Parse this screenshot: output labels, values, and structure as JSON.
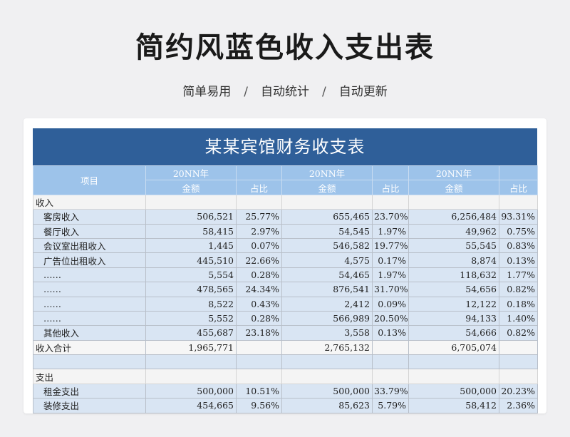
{
  "title": "简约风蓝色收入支出表",
  "tags": [
    "简单易用",
    "自动统计",
    "自动更新"
  ],
  "separator": "/",
  "sheet": {
    "title": "某某宾馆财务收支表",
    "header": {
      "item": "项目",
      "periods": [
        "20NN年",
        "20NN年",
        "20NN年"
      ],
      "amount": "金额",
      "ratio": "占比"
    },
    "income_section": "收入",
    "income_rows": [
      {
        "label": "客房收入",
        "v": [
          "506,521",
          "25.77%",
          "655,465",
          "23.70%",
          "6,256,484",
          "93.31%"
        ]
      },
      {
        "label": "餐厅收入",
        "v": [
          "58,415",
          "2.97%",
          "54,545",
          "1.97%",
          "49,962",
          "0.75%"
        ]
      },
      {
        "label": "会议室出租收入",
        "v": [
          "1,445",
          "0.07%",
          "546,582",
          "19.77%",
          "55,545",
          "0.83%"
        ]
      },
      {
        "label": "广告位出租收入",
        "v": [
          "445,510",
          "22.66%",
          "4,575",
          "0.17%",
          "8,874",
          "0.13%"
        ]
      },
      {
        "label": "……",
        "v": [
          "5,554",
          "0.28%",
          "54,465",
          "1.97%",
          "118,632",
          "1.77%"
        ]
      },
      {
        "label": "……",
        "v": [
          "478,565",
          "24.34%",
          "876,541",
          "31.70%",
          "54,656",
          "0.82%"
        ]
      },
      {
        "label": "……",
        "v": [
          "8,522",
          "0.43%",
          "2,412",
          "0.09%",
          "12,122",
          "0.18%"
        ]
      },
      {
        "label": "……",
        "v": [
          "5,552",
          "0.28%",
          "566,989",
          "20.50%",
          "94,133",
          "1.40%"
        ]
      },
      {
        "label": "其他收入",
        "v": [
          "455,687",
          "23.18%",
          "3,558",
          "0.13%",
          "54,666",
          "0.82%"
        ]
      }
    ],
    "income_total": {
      "label": "收入合计",
      "v": [
        "1,965,771",
        "",
        "2,765,132",
        "",
        "6,705,074",
        ""
      ]
    },
    "expense_section": "支出",
    "expense_rows": [
      {
        "label": "租金支出",
        "v": [
          "500,000",
          "10.51%",
          "500,000",
          "33.79%",
          "500,000",
          "20.23%"
        ]
      },
      {
        "label": "装修支出",
        "v": [
          "454,665",
          "9.56%",
          "85,623",
          "5.79%",
          "58,412",
          "2.36%"
        ]
      }
    ]
  }
}
